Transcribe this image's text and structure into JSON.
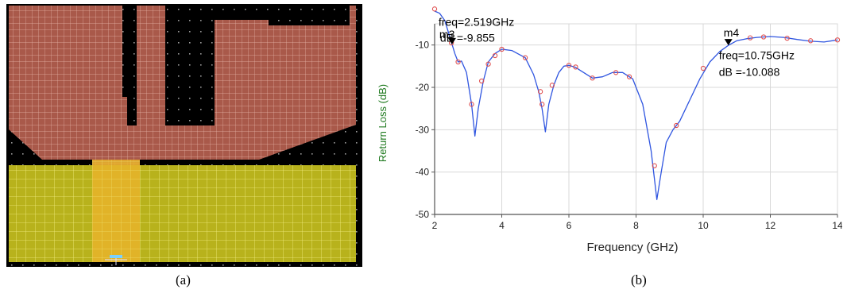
{
  "layout": {
    "colors": {
      "background": "#000000",
      "dots": "#9a9a9a",
      "patch_fill": "#a9594a",
      "patch_grid": "#e6b4a8",
      "ground_fill": "#b8b21c",
      "ground_grid": "#f2ee80",
      "feed_fill": "#e7b32a"
    }
  },
  "captions": {
    "a": "(a)",
    "b": "(b)"
  },
  "chart_data": {
    "type": "line",
    "xlabel": "Frequency (GHz)",
    "ylabel": "Return Loss (dB)",
    "xlim": [
      2,
      14
    ],
    "ylim": [
      -50,
      -5
    ],
    "xticks": [
      2,
      4,
      6,
      8,
      10,
      12,
      14
    ],
    "yticks": [
      -10,
      -20,
      -30,
      -40,
      -50
    ],
    "grid": true,
    "colors": {
      "line": "#2f55e0",
      "markers": "#e05050",
      "grid": "#d8d8d8",
      "axis": "#555555"
    },
    "series": [
      {
        "x": [
          2.0,
          2.15,
          2.3,
          2.45,
          2.52,
          2.6,
          2.7,
          2.8,
          2.95,
          3.1,
          3.2,
          3.3,
          3.45,
          3.6,
          3.8,
          4.0,
          4.3,
          4.7,
          4.95,
          5.1,
          5.2,
          5.3,
          5.4,
          5.55,
          5.7,
          5.85,
          6.0,
          6.2,
          6.5,
          6.7,
          7.0,
          7.3,
          7.6,
          7.9,
          8.2,
          8.45,
          8.62,
          8.75,
          8.9,
          9.1,
          9.3,
          9.6,
          9.9,
          10.2,
          10.5,
          10.75,
          11.0,
          11.3,
          11.6,
          12.0,
          12.4,
          12.8,
          13.2,
          13.6,
          14.0
        ],
        "y": [
          -2,
          -2.5,
          -4.2,
          -8,
          -9.855,
          -12,
          -14,
          -13.8,
          -16.5,
          -24,
          -31.5,
          -25,
          -18.5,
          -14,
          -12,
          -11,
          -11.3,
          -13,
          -17,
          -21,
          -25,
          -30.5,
          -24,
          -19.5,
          -16.5,
          -15,
          -14.8,
          -15.3,
          -16.8,
          -17.8,
          -17.5,
          -16.5,
          -16.5,
          -18,
          -24,
          -35,
          -46.5,
          -40,
          -33,
          -30,
          -28,
          -23,
          -18,
          -14,
          -11.5,
          -10.088,
          -9,
          -8.5,
          -8.2,
          -8,
          -8.2,
          -8.7,
          -9.1,
          -9.3,
          -8.8
        ]
      }
    ],
    "marker_points": {
      "x": [
        2.0,
        2.5,
        2.7,
        3.1,
        3.4,
        3.6,
        3.8,
        4.0,
        4.7,
        5.15,
        5.2,
        5.5,
        6.0,
        6.2,
        6.7,
        7.4,
        7.8,
        8.55,
        9.2,
        10.0,
        11.4,
        11.8,
        12.5,
        13.2,
        14.0
      ],
      "y": [
        -1.5,
        -9.5,
        -14,
        -24,
        -18.5,
        -14.5,
        -12.5,
        -11,
        -13,
        -21,
        -24,
        -19.5,
        -14.8,
        -15.2,
        -17.8,
        -16.5,
        -17.5,
        -38.5,
        -29,
        -15.5,
        -8.3,
        -8.1,
        -8.4,
        -9,
        -8.8
      ]
    },
    "markers": [
      {
        "name": "m3",
        "x": 2.519,
        "y": -9.855,
        "freq_text": "freq=2.519GHz",
        "db_text": "dB =-9.855"
      },
      {
        "name": "m4",
        "x": 10.75,
        "y": -10.088,
        "freq_text": "freq=10.75GHz",
        "db_text": "dB =-10.088"
      }
    ]
  }
}
